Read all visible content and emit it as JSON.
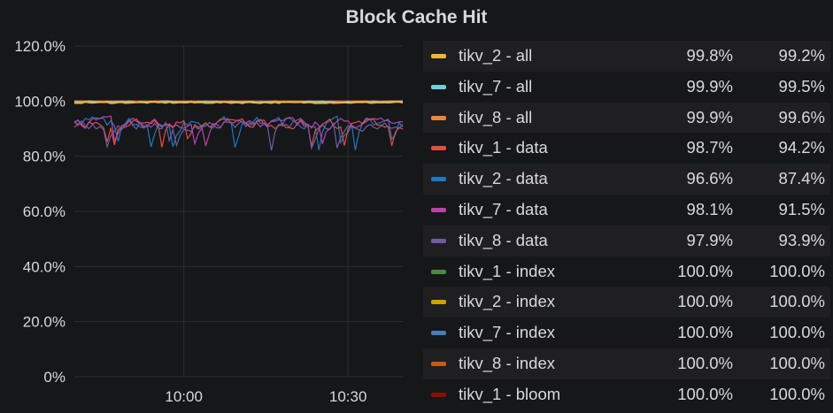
{
  "panel": {
    "title": "Block Cache Hit"
  },
  "chart_data": {
    "type": "line",
    "title": "Block Cache Hit",
    "ylim": [
      0,
      120
    ],
    "yticks": [
      "120.0%",
      "100.0%",
      "80.0%",
      "60.0%",
      "40.0%",
      "20.0%",
      "0%"
    ],
    "ytick_values": [
      120,
      100,
      80,
      60,
      40,
      20,
      0
    ],
    "xlim": [
      "09:40",
      "10:40"
    ],
    "xticks": [
      "10:00",
      "10:30"
    ],
    "xtick_minutes": [
      20,
      50
    ],
    "grid": true,
    "legend_position": "right",
    "series": [
      {
        "name": "tikv_2 - all",
        "color": "#eab839",
        "current": "99.8%",
        "min": "99.2%",
        "level": 99.5,
        "spread": 0.25
      },
      {
        "name": "tikv_7 - all",
        "color": "#6ed0e0",
        "current": "99.9%",
        "min": "99.5%",
        "level": 99.7,
        "spread": 0.15
      },
      {
        "name": "tikv_8 - all",
        "color": "#ef843c",
        "current": "99.9%",
        "min": "99.6%",
        "level": 99.75,
        "spread": 0.12
      },
      {
        "name": "tikv_1 - data",
        "color": "#e24d42",
        "current": "98.7%",
        "min": "94.2%",
        "level": 92.0,
        "spread": 3.0
      },
      {
        "name": "tikv_2 - data",
        "color": "#1f78c1",
        "current": "96.6%",
        "min": "87.4%",
        "level": 92.5,
        "spread": 3.2
      },
      {
        "name": "tikv_7 - data",
        "color": "#ba43a9",
        "current": "98.1%",
        "min": "91.5%",
        "level": 92.0,
        "spread": 3.0
      },
      {
        "name": "tikv_8 - data",
        "color": "#705da0",
        "current": "97.9%",
        "min": "93.9%",
        "level": 91.5,
        "spread": 3.0
      },
      {
        "name": "tikv_1 - index",
        "color": "#508642",
        "current": "100.0%",
        "min": "100.0%",
        "level": 100,
        "spread": 0
      },
      {
        "name": "tikv_2 - index",
        "color": "#cca300",
        "current": "100.0%",
        "min": "100.0%",
        "level": 100,
        "spread": 0
      },
      {
        "name": "tikv_7 - index",
        "color": "#447ebc",
        "current": "100.0%",
        "min": "100.0%",
        "level": 100,
        "spread": 0
      },
      {
        "name": "tikv_8 - index",
        "color": "#c15c17",
        "current": "100.0%",
        "min": "100.0%",
        "level": 100,
        "spread": 0
      },
      {
        "name": "tikv_1 - bloom",
        "color": "#890f02",
        "current": "100.0%",
        "min": "100.0%",
        "level": 100,
        "spread": 0
      }
    ]
  }
}
